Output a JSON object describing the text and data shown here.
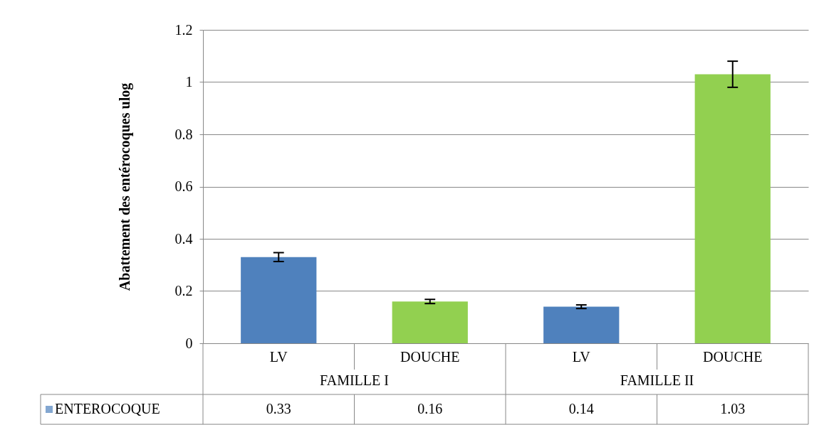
{
  "chart_data": {
    "type": "bar",
    "ylabel": "Abattement des entérocoques ulog",
    "categories": [
      "LV",
      "DOUCHE",
      "LV",
      "DOUCHE"
    ],
    "series": [
      {
        "name": "ENTEROCOQUE",
        "color": "#4f81bd",
        "colors": [
          "#4f81bd",
          "#92d050",
          "#4f81bd",
          "#92d050"
        ],
        "values": [
          0.33,
          0.16,
          0.14,
          1.03
        ],
        "errors": [
          0.017,
          0.008,
          0.007,
          0.05
        ]
      }
    ],
    "annotations": [
      "FAMILLE I",
      "FAMILLE II"
    ],
    "ylim": [
      0,
      1.2
    ],
    "yticks": [
      0,
      0.2,
      0.4,
      0.6,
      0.8,
      1,
      1.2
    ],
    "grid": "y",
    "data_labels": true,
    "legend": "bottom"
  }
}
